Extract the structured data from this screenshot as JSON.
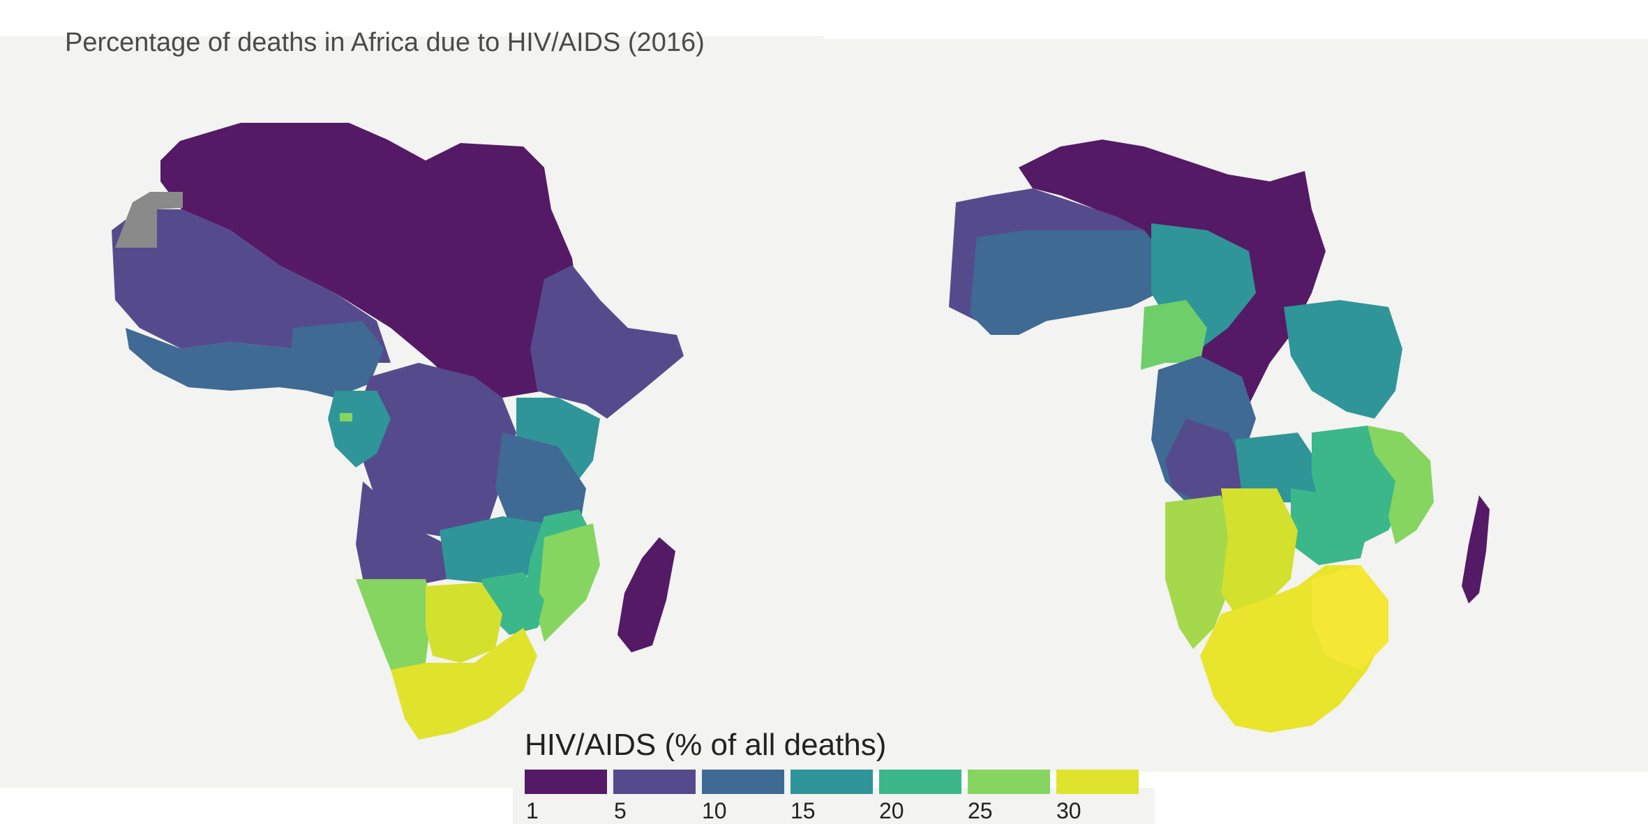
{
  "title": "Percentage of deaths in Africa due to HIV/AIDS (2016)",
  "legend": {
    "title": "HIV/AIDS (% of all deaths)",
    "bins": [
      {
        "label": "1",
        "color": "#541a66"
      },
      {
        "label": "5",
        "color": "#554b8c"
      },
      {
        "label": "10",
        "color": "#3f6a93"
      },
      {
        "label": "15",
        "color": "#2f9598"
      },
      {
        "label": "20",
        "color": "#3cb78a"
      },
      {
        "label": "25",
        "color": "#86d560"
      },
      {
        "label": "30",
        "color": "#e0e32c"
      }
    ]
  },
  "maps": [
    {
      "name": "choropleth",
      "projection": "equal-area"
    },
    {
      "name": "cartogram",
      "projection": "area-scaled by HIV/AIDS death share"
    }
  ],
  "colors": {
    "background": "#f3f3f1",
    "no_data": "#8a8a8a"
  }
}
